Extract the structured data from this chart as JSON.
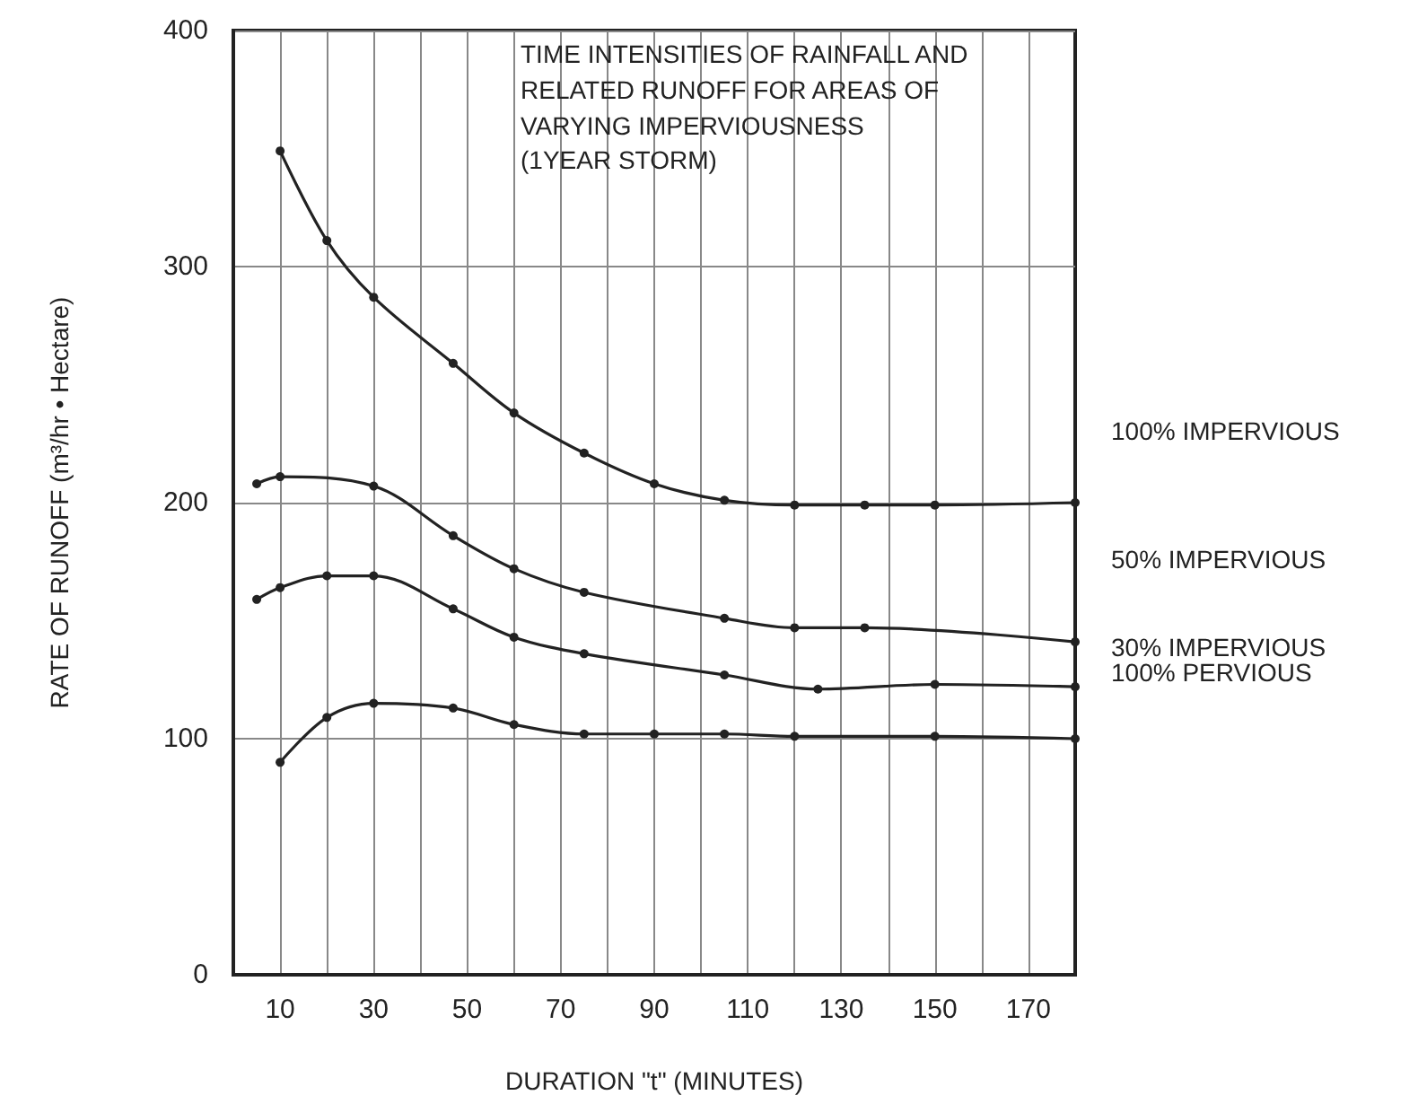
{
  "chart_data": {
    "type": "line",
    "title": "TIME INTENSITIES OF RAINFALL AND\nRELATED RUNOFF FOR AREAS OF\nVARYING IMPERVIOUSNESS",
    "subtitle": "(1YEAR STORM)",
    "xlabel": "DURATION \"t\" (MINUTES)",
    "ylabel": "RATE OF RUNOFF (m³/hr • Hectare)",
    "xlim": [
      0,
      180
    ],
    "xticks": [
      10,
      {
        "value": 20,
        "label": null
      },
      30,
      {
        "value": 40,
        "label": null
      },
      50,
      {
        "value": 60,
        "label": null
      },
      70,
      {
        "value": 80,
        "label": null
      },
      90,
      {
        "value": 100,
        "label": null
      },
      110,
      {
        "value": 120,
        "label": null
      },
      130,
      {
        "value": 140,
        "label": null
      },
      150,
      {
        "value": 160,
        "label": null
      },
      170
    ],
    "ylim": [
      0,
      400
    ],
    "yticks": [
      0,
      100,
      200,
      300,
      400
    ],
    "grid": true,
    "legend": false,
    "marker": "circle",
    "line_style": "solid",
    "series": [
      {
        "name": "100% IMPERVIOUS",
        "color": "#222222",
        "x": [
          10,
          20,
          30,
          47,
          60,
          75,
          90,
          105,
          120,
          135,
          150,
          180
        ],
        "values": [
          349,
          311,
          287,
          259,
          238,
          221,
          208,
          201,
          199,
          199,
          199,
          200
        ]
      },
      {
        "name": "50% IMPERVIOUS",
        "color": "#222222",
        "x": [
          5,
          10,
          30,
          47,
          60,
          75,
          105,
          120,
          135,
          180
        ],
        "values": [
          208,
          211,
          207,
          186,
          172,
          162,
          151,
          147,
          147,
          141
        ]
      },
      {
        "name": "30% IMPERVIOUS",
        "color": "#222222",
        "x": [
          5,
          10,
          20,
          30,
          47,
          60,
          75,
          105,
          125,
          150,
          180
        ],
        "values": [
          159,
          164,
          169,
          169,
          155,
          143,
          136,
          127,
          121,
          123,
          122
        ]
      },
      {
        "name": "100% PERVIOUS",
        "color": "#222222",
        "x": [
          10,
          20,
          30,
          47,
          60,
          75,
          90,
          105,
          120,
          150,
          180
        ],
        "values": [
          90,
          109,
          115,
          113,
          106,
          102,
          102,
          102,
          101,
          101,
          100
        ]
      }
    ]
  }
}
